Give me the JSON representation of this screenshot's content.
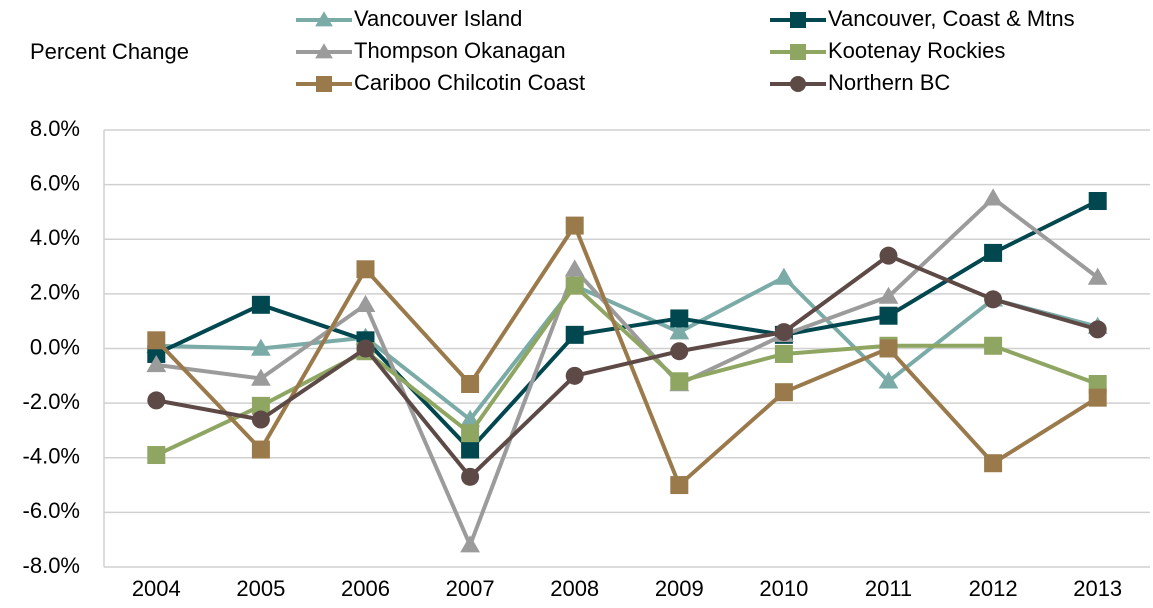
{
  "chart_data": {
    "type": "line",
    "ylabel": "Percent Change",
    "categories": [
      "2004",
      "2005",
      "2006",
      "2007",
      "2008",
      "2009",
      "2010",
      "2011",
      "2012",
      "2013"
    ],
    "ylim": [
      -8,
      8
    ],
    "yticks": [
      {
        "value": -8,
        "label": "-8.0%"
      },
      {
        "value": -6,
        "label": "-6.0%"
      },
      {
        "value": -4,
        "label": "-4.0%"
      },
      {
        "value": -2,
        "label": "-2.0%"
      },
      {
        "value": 0,
        "label": "0.0%"
      },
      {
        "value": 2,
        "label": "2.0%"
      },
      {
        "value": 4,
        "label": "4.0%"
      },
      {
        "value": 6,
        "label": "6.0%"
      },
      {
        "value": 8,
        "label": "8.0%"
      }
    ],
    "grid": true,
    "series": [
      {
        "name": "Vancouver Island",
        "color": "#7aaba7",
        "marker": "triangle",
        "values": [
          0.1,
          0.0,
          0.4,
          -2.6,
          2.3,
          0.6,
          2.6,
          -1.2,
          1.8,
          0.8
        ]
      },
      {
        "name": "Vancouver, Coast & Mtns",
        "color": "#00474f",
        "marker": "square",
        "values": [
          -0.2,
          1.6,
          0.3,
          -3.7,
          0.5,
          1.1,
          0.5,
          1.2,
          3.5,
          5.4
        ]
      },
      {
        "name": "Thompson Okanagan",
        "color": "#9b9b9b",
        "marker": "triangle",
        "values": [
          -0.6,
          -1.1,
          1.6,
          -7.2,
          2.9,
          -1.3,
          0.5,
          1.9,
          5.5,
          2.6
        ]
      },
      {
        "name": "Kootenay Rockies",
        "color": "#8ea662",
        "marker": "square",
        "values": [
          -3.9,
          -2.1,
          -0.1,
          -3.1,
          2.3,
          -1.2,
          -0.2,
          0.1,
          0.1,
          -1.3
        ]
      },
      {
        "name": "Cariboo Chilcotin Coast",
        "color": "#9a7a4b",
        "marker": "square",
        "values": [
          0.3,
          -3.7,
          2.9,
          -1.3,
          4.5,
          -5.0,
          -1.6,
          0.0,
          -4.2,
          -1.8
        ]
      },
      {
        "name": "Northern BC",
        "color": "#5d4a46",
        "marker": "circle",
        "values": [
          -1.9,
          -2.6,
          0.0,
          -4.7,
          -1.0,
          -0.1,
          0.6,
          3.4,
          1.8,
          0.7
        ]
      }
    ]
  }
}
